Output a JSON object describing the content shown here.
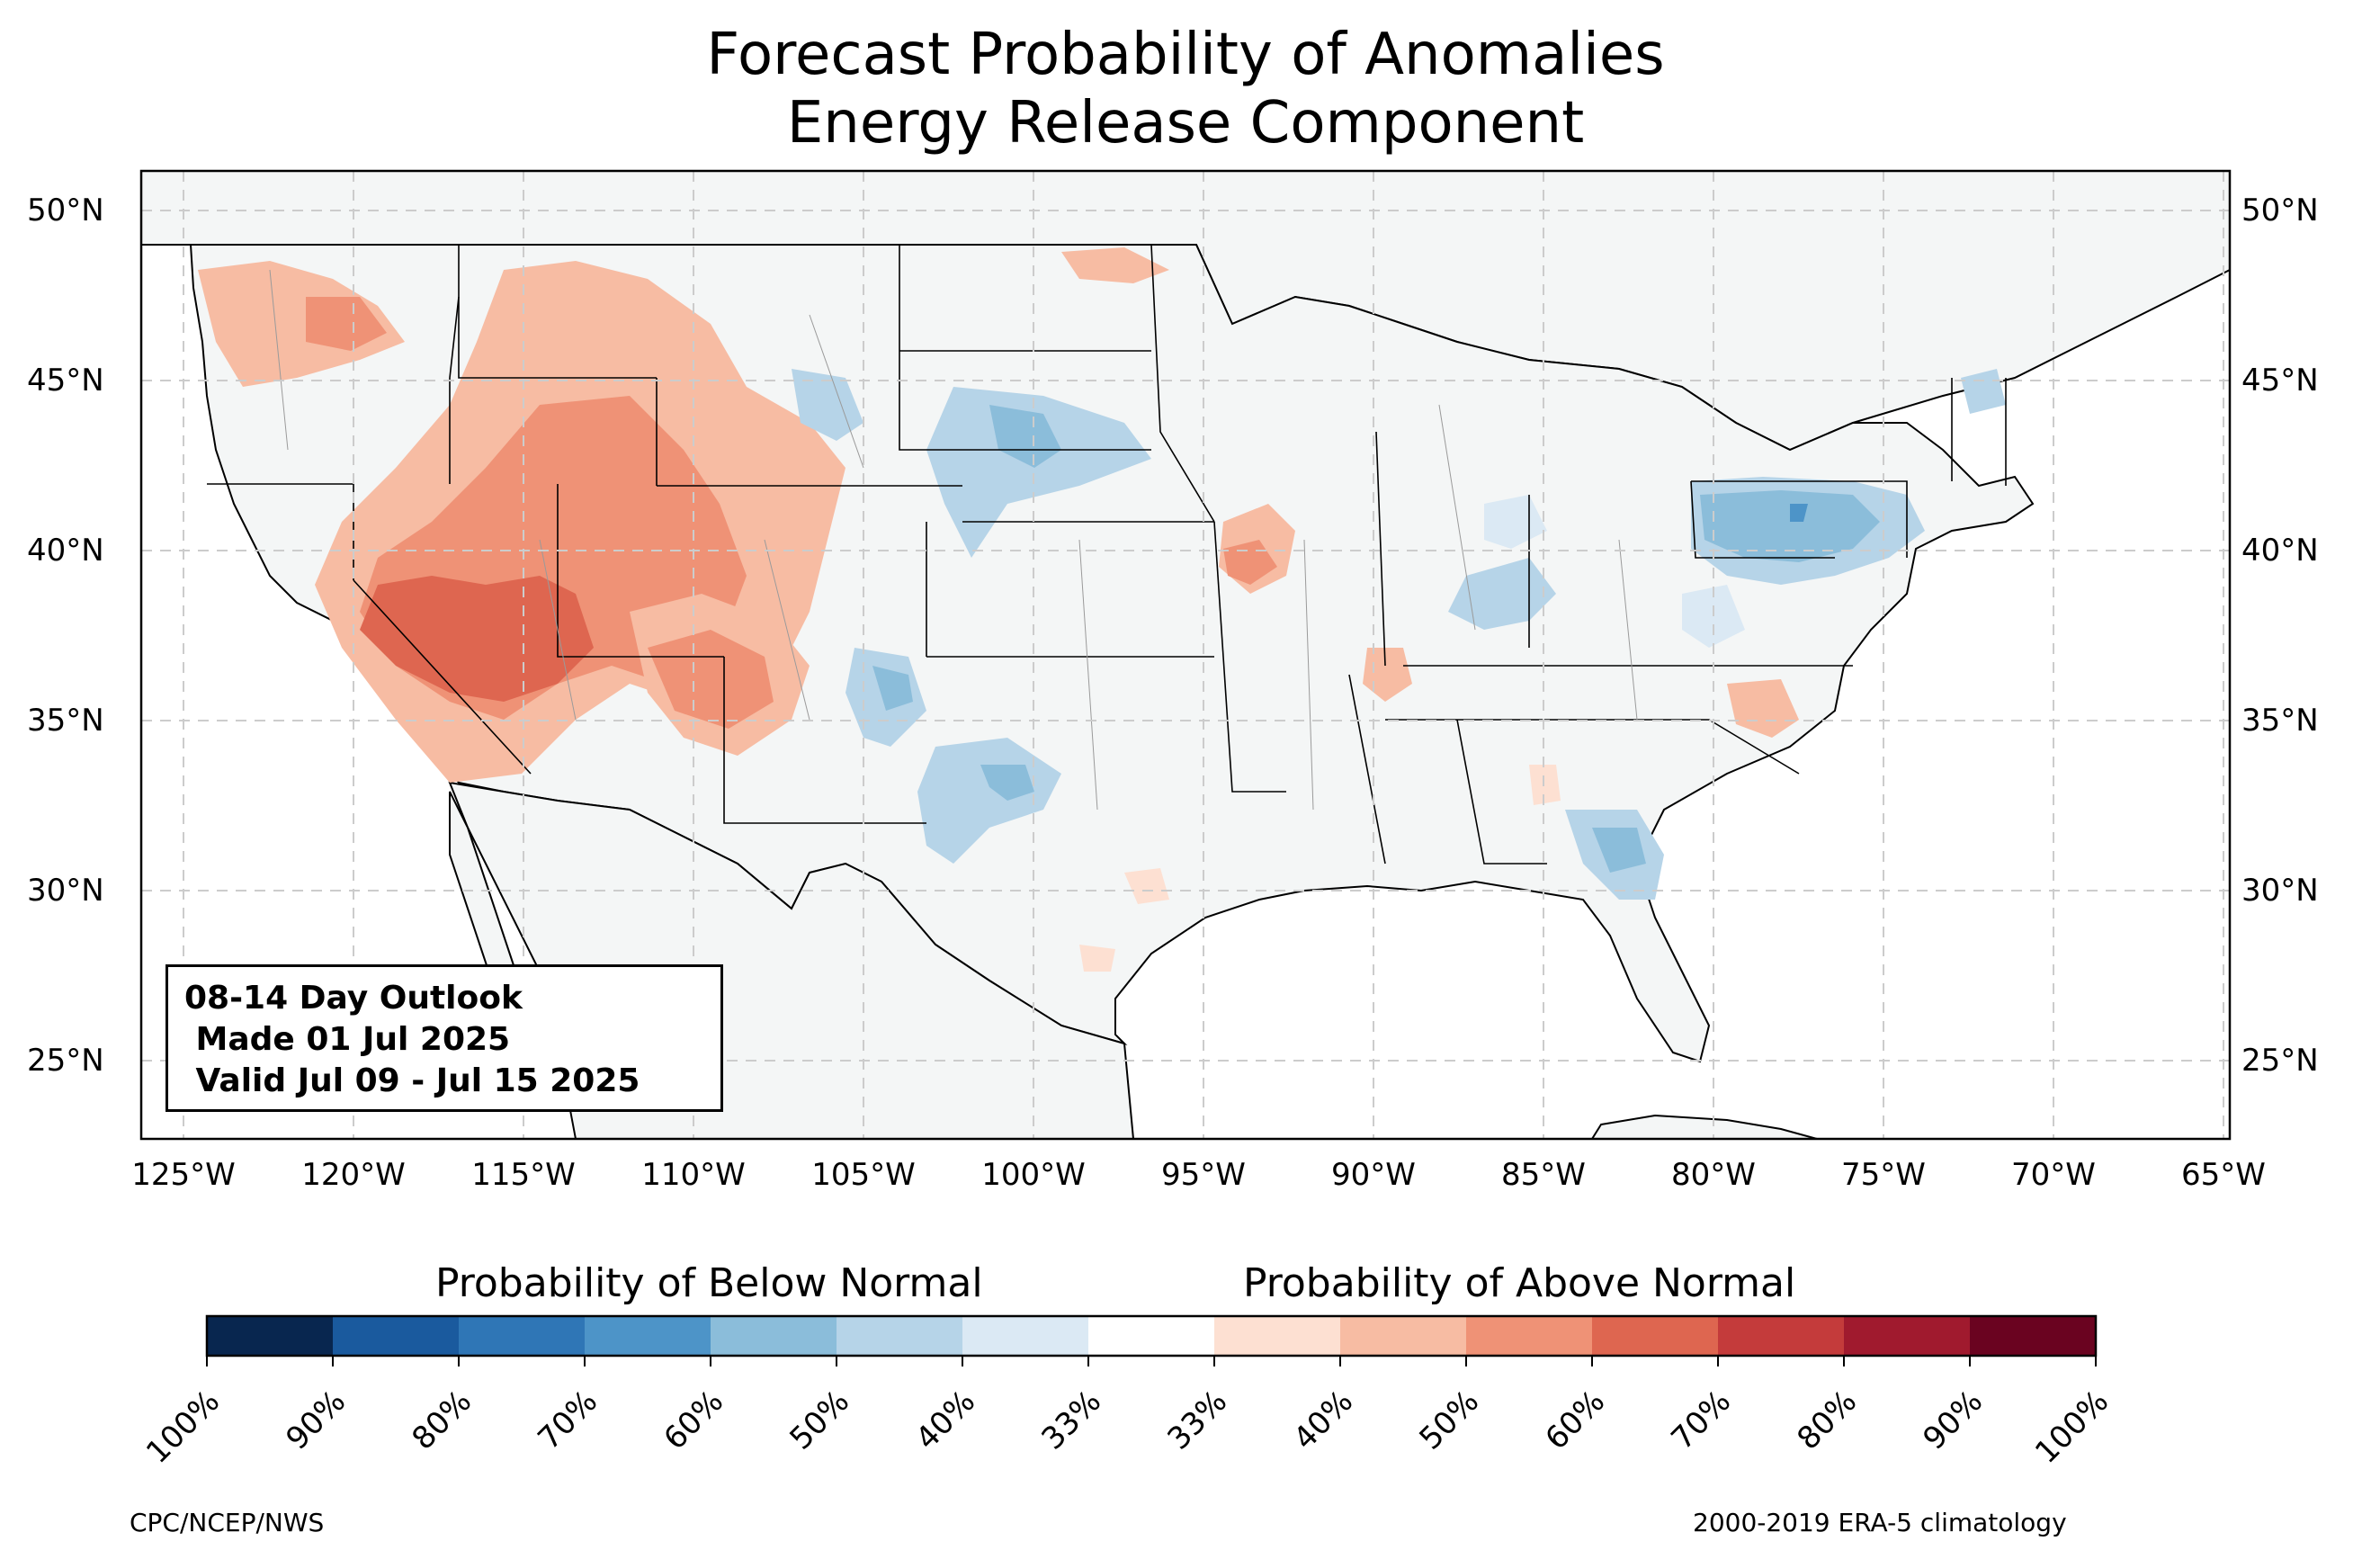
{
  "title": {
    "line1": "Forecast Probability of Anomalies",
    "line2": "Energy Release Component"
  },
  "outlook": {
    "line1": "08-14 Day Outlook",
    "line2": " Made 01 Jul 2025",
    "line3": " Valid Jul 09 - Jul 15 2025"
  },
  "map": {
    "lon_range": [
      -126.3,
      -64.9
    ],
    "lat_range": [
      22.8,
      51.2
    ],
    "lat_labels": [
      "50°N",
      "45°N",
      "40°N",
      "35°N",
      "30°N",
      "25°N"
    ],
    "lon_labels": [
      "125°W",
      "120°W",
      "115°W",
      "110°W",
      "105°W",
      "100°W",
      "95°W",
      "90°W",
      "85°W",
      "80°W",
      "75°W",
      "70°W",
      "65°W"
    ],
    "land_color": "#f4f6f6",
    "water_color": "#ffffff"
  },
  "colorbar": {
    "below_label": "Probability of Below Normal",
    "above_label": "Probability of Above Normal",
    "tick_labels": [
      "100%",
      "90%",
      "80%",
      "70%",
      "60%",
      "50%",
      "40%",
      "33%",
      "33%",
      "40%",
      "50%",
      "60%",
      "70%",
      "80%",
      "90%",
      "100%"
    ],
    "colors": [
      "#08264f",
      "#1a5a9e",
      "#2f76b6",
      "#4d94c8",
      "#8bbdda",
      "#b6d4e8",
      "#dbe9f4",
      "#ffffff",
      "#fde0d2",
      "#f7bca3",
      "#ef9276",
      "#de6650",
      "#c43b3b",
      "#a01a2e",
      "#6a0320"
    ]
  },
  "credits": {
    "left": "CPC/NCEP/NWS",
    "right": "2000-2019 ERA-5 climatology"
  }
}
